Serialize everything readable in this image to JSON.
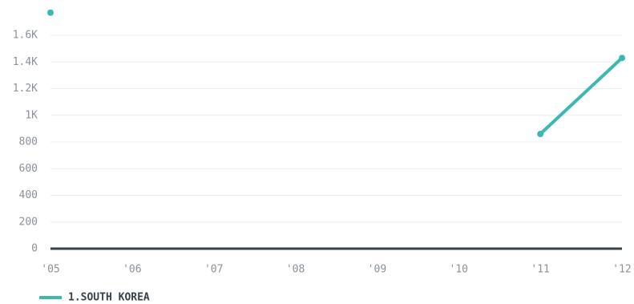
{
  "chart_data": {
    "type": "line",
    "categories": [
      "'05",
      "'06",
      "'07",
      "'08",
      "'09",
      "'10",
      "'11",
      "'12"
    ],
    "series": [
      {
        "name": "1.SOUTH KOREA",
        "color": "#3bb8b0",
        "values": [
          1770,
          null,
          null,
          null,
          null,
          null,
          860,
          1430
        ]
      }
    ],
    "ylim": [
      0,
      1800
    ],
    "yticks": [
      0,
      200,
      400,
      600,
      800,
      {
        "value": 1000,
        "label": "1K"
      },
      {
        "value": 1200,
        "label": "1.2K"
      },
      {
        "value": 1400,
        "label": "1.4K"
      },
      {
        "value": 1600,
        "label": "1.6K"
      }
    ],
    "grid": true
  }
}
